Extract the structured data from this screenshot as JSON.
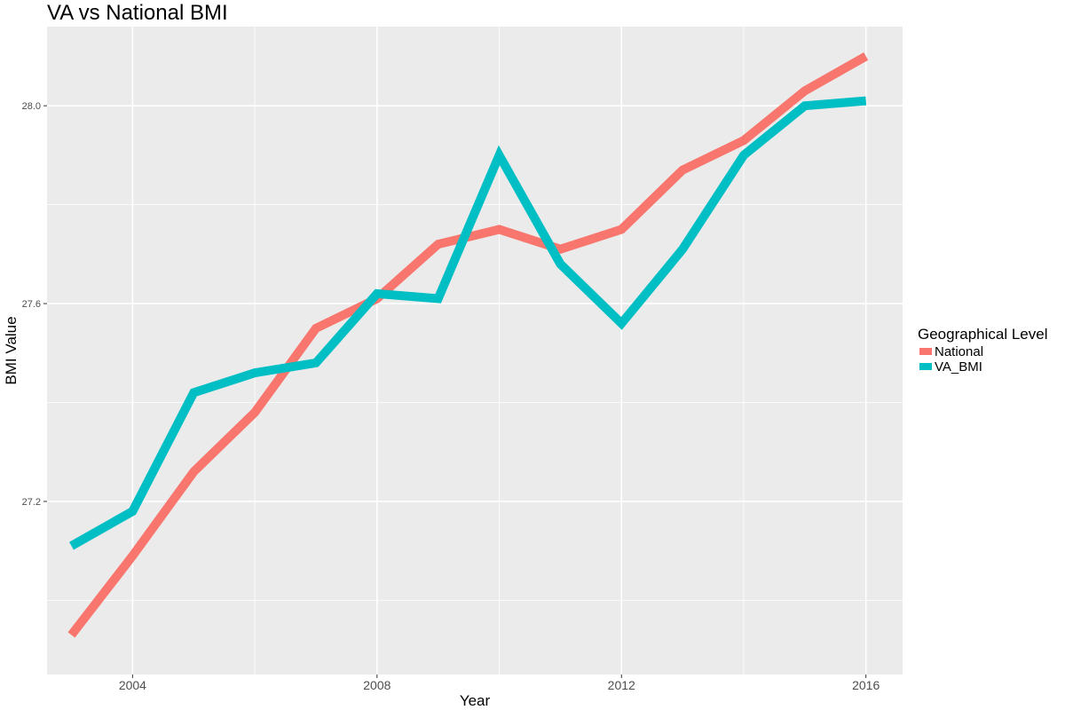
{
  "chart_data": {
    "type": "line",
    "title": "VA vs National BMI",
    "xlabel": "Year",
    "ylabel": "BMI Value",
    "x": [
      2003,
      2004,
      2005,
      2006,
      2007,
      2008,
      2009,
      2010,
      2011,
      2012,
      2013,
      2014,
      2015,
      2016
    ],
    "series": [
      {
        "name": "National",
        "color": "#F8766D",
        "values": [
          26.93,
          27.09,
          27.26,
          27.38,
          27.55,
          27.61,
          27.72,
          27.75,
          27.71,
          27.75,
          27.87,
          27.93,
          28.03,
          28.1
        ]
      },
      {
        "name": "VA_BMI",
        "color": "#00BFC4",
        "values": [
          27.11,
          27.18,
          27.42,
          27.46,
          27.48,
          27.62,
          27.61,
          27.9,
          27.68,
          27.56,
          27.71,
          27.9,
          28.0,
          28.01
        ]
      }
    ],
    "xlim": [
      2002.6,
      2016.6
    ],
    "ylim": [
      26.85,
      28.16
    ],
    "x_ticks": [
      2004,
      2008,
      2012,
      2016
    ],
    "x_tick_labels": [
      "2004",
      "2008",
      "2012",
      "2016"
    ],
    "y_ticks": [
      27.2,
      27.6,
      28.0
    ],
    "y_tick_labels": [
      "27.2",
      "27.6",
      "28.0"
    ],
    "legend_title": "Geographical Level",
    "legend_position": "right",
    "grid": true,
    "panel_background": "#EBEBEB",
    "grid_color": "#FFFFFF"
  }
}
